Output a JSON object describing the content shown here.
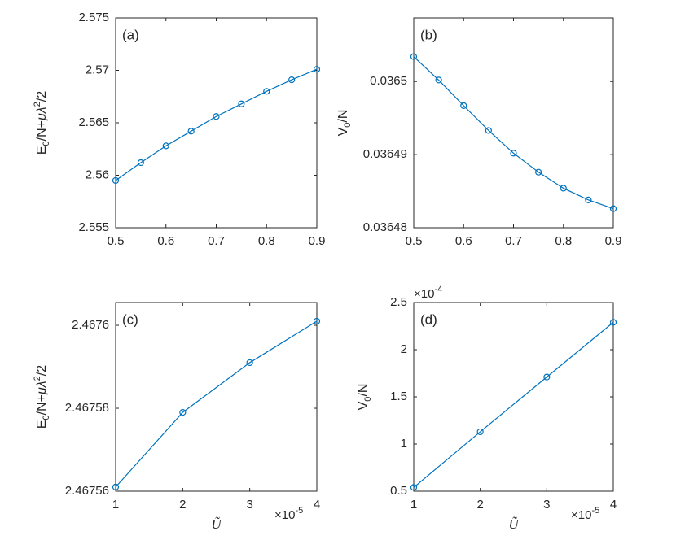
{
  "chart_data": [
    {
      "type": "line",
      "annotation": "(a)",
      "color": "#0072bd",
      "ylabel": {
        "parts": [
          "E",
          "0",
          "/N+",
          "μλ",
          "2",
          "/2"
        ]
      },
      "x": [
        0.5,
        0.55,
        0.6,
        0.65,
        0.7,
        0.75,
        0.8,
        0.85,
        0.9
      ],
      "values": [
        2.5595,
        2.5612,
        2.5628,
        2.5642,
        2.5656,
        2.5668,
        2.568,
        2.5691,
        2.5701
      ],
      "xlim": [
        0.5,
        0.9
      ],
      "xticks": [
        0.5,
        0.6,
        0.7,
        0.8,
        0.9
      ],
      "ylim": [
        2.555,
        2.575
      ],
      "yticks": [
        2.555,
        2.56,
        2.565,
        2.57,
        2.575
      ]
    },
    {
      "type": "line",
      "annotation": "(b)",
      "color": "#0072bd",
      "ylabel": {
        "parts": [
          "V",
          "0",
          "/N"
        ]
      },
      "x": [
        0.5,
        0.55,
        0.6,
        0.65,
        0.7,
        0.75,
        0.8,
        0.85,
        0.9
      ],
      "values": [
        0.0365034,
        0.0365002,
        0.0364967,
        0.0364933,
        0.0364902,
        0.0364876,
        0.0364854,
        0.0364838,
        0.0364826
      ],
      "xlim": [
        0.5,
        0.9
      ],
      "xticks": [
        0.5,
        0.6,
        0.7,
        0.8,
        0.9
      ],
      "ylim": [
        0.03648,
        0.0365087
      ],
      "yticks": [
        0.03648,
        0.03649,
        0.0365
      ]
    },
    {
      "type": "line",
      "annotation": "(c)",
      "color": "#0072bd",
      "ylabel": {
        "parts": [
          "E",
          "0",
          "/N+",
          "μλ",
          "2",
          "/2"
        ]
      },
      "xlabel": "Ũ",
      "x_exponent": {
        "base": "×10",
        "power": "-5"
      },
      "x": [
        1e-05,
        2e-05,
        3e-05,
        4e-05
      ],
      "values": [
        2.467561,
        2.467579,
        2.467591,
        2.467601
      ],
      "xlim": [
        1e-05,
        4e-05
      ],
      "xticks": [
        {
          "value": 1e-05,
          "label": "1"
        },
        {
          "value": 2e-05,
          "label": "2"
        },
        {
          "value": 3e-05,
          "label": "3"
        },
        {
          "value": 4e-05,
          "label": "4"
        }
      ],
      "ylim": [
        2.46756,
        2.4676055
      ],
      "yticks": [
        2.46756,
        2.46758,
        2.4676
      ]
    },
    {
      "type": "line",
      "annotation": "(d)",
      "color": "#0072bd",
      "ylabel": {
        "parts": [
          "V",
          "0",
          "/N"
        ]
      },
      "xlabel": "Ũ",
      "x_exponent": {
        "base": "×10",
        "power": "-5"
      },
      "y_exponent": {
        "base": "×10",
        "power": "-4"
      },
      "x": [
        1e-05,
        2e-05,
        3e-05,
        4e-05
      ],
      "values": [
        5.4e-05,
        0.000113,
        0.000171,
        0.000229
      ],
      "xlim": [
        1e-05,
        4e-05
      ],
      "xticks": [
        {
          "value": 1e-05,
          "label": "1"
        },
        {
          "value": 2e-05,
          "label": "2"
        },
        {
          "value": 3e-05,
          "label": "3"
        },
        {
          "value": 4e-05,
          "label": "4"
        }
      ],
      "ylim": [
        5e-05,
        0.00025
      ],
      "yticks": [
        {
          "value": 5e-05,
          "label": "0.5"
        },
        {
          "value": 0.0001,
          "label": "1"
        },
        {
          "value": 0.00015,
          "label": "1.5"
        },
        {
          "value": 0.0002,
          "label": "2"
        },
        {
          "value": 0.00025,
          "label": "2.5"
        }
      ]
    }
  ]
}
